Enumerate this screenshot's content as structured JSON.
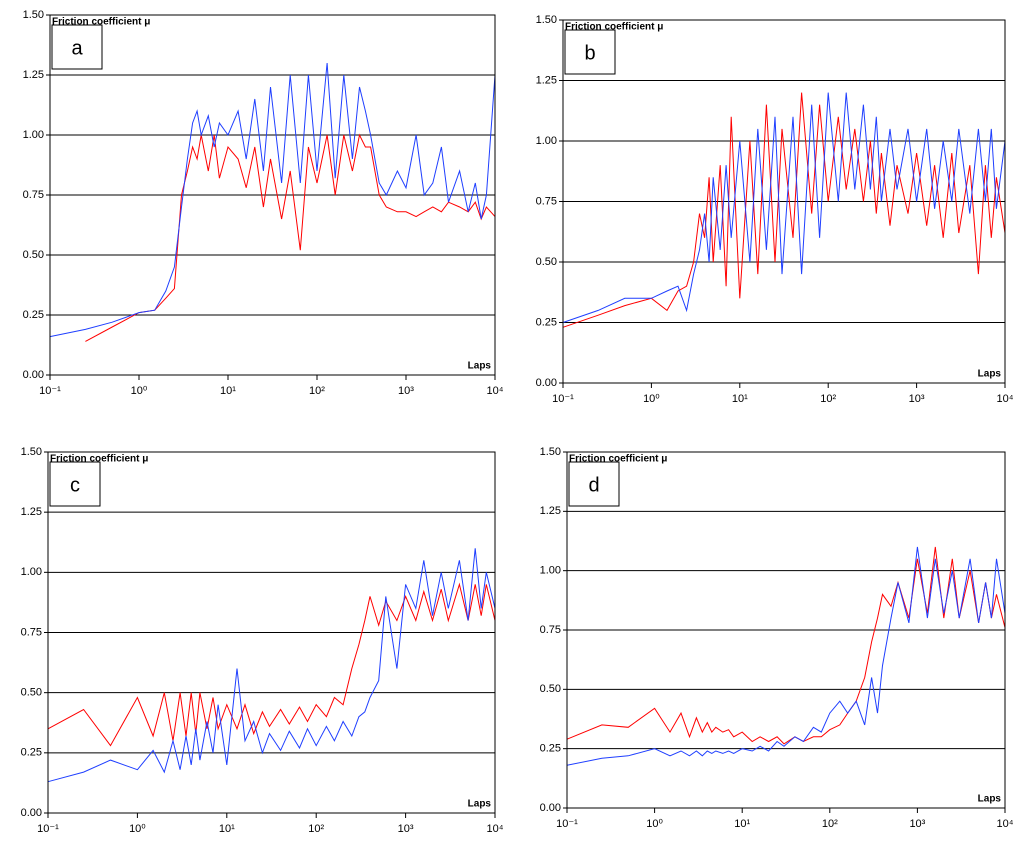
{
  "chart_data": [
    {
      "type": "line",
      "label": "a",
      "y_label": "Friction coefficient μ",
      "x_label": "Laps",
      "log_x": true,
      "grid": true,
      "x": [
        0.1,
        0.25,
        0.5,
        1,
        1.5,
        2,
        2.5,
        3,
        3.5,
        4,
        4.5,
        5,
        6,
        7,
        8,
        10,
        13,
        16,
        20,
        25,
        30,
        40,
        50,
        65,
        80,
        100,
        130,
        160,
        200,
        250,
        300,
        350,
        400,
        500,
        600,
        800,
        1000,
        1300,
        1600,
        2000,
        2500,
        3000,
        4000,
        5000,
        6000,
        7000,
        8000,
        10000
      ],
      "series": [
        {
          "color": "#ff0000",
          "values": [
            null,
            0.14,
            0.2,
            0.26,
            0.27,
            0.32,
            0.36,
            0.75,
            0.85,
            0.95,
            0.9,
            1.0,
            0.85,
            1.0,
            0.82,
            0.95,
            0.9,
            0.78,
            0.95,
            0.7,
            0.9,
            0.65,
            0.85,
            0.52,
            0.95,
            0.8,
            1.0,
            0.75,
            1.0,
            0.85,
            1.0,
            0.95,
            0.95,
            0.75,
            0.7,
            0.68,
            0.68,
            0.66,
            0.68,
            0.7,
            0.68,
            0.72,
            0.7,
            0.68,
            0.72,
            0.65,
            0.7,
            0.66
          ]
        },
        {
          "color": "#1f3fff",
          "values": [
            0.16,
            0.19,
            0.22,
            0.26,
            0.27,
            0.35,
            0.45,
            0.7,
            0.9,
            1.05,
            1.1,
            1.0,
            1.08,
            0.95,
            1.05,
            1.0,
            1.1,
            0.9,
            1.15,
            0.85,
            1.2,
            0.8,
            1.25,
            0.8,
            1.25,
            0.85,
            1.3,
            0.82,
            1.25,
            0.9,
            1.2,
            1.1,
            1.0,
            0.8,
            0.75,
            0.85,
            0.78,
            1.0,
            0.75,
            0.8,
            0.95,
            0.72,
            0.85,
            0.68,
            0.8,
            0.65,
            0.75,
            1.25
          ]
        }
      ],
      "xlim": [
        0.1,
        10000
      ],
      "xticks": [
        {
          "value": 0.1,
          "label": "10⁻¹"
        },
        {
          "value": 1,
          "label": "10⁰"
        },
        {
          "value": 10,
          "label": "10¹"
        },
        {
          "value": 100,
          "label": "10²"
        },
        {
          "value": 1000,
          "label": "10³"
        },
        {
          "value": 10000,
          "label": "10⁴"
        }
      ],
      "ylim": [
        0,
        1.5
      ],
      "yticks": [
        {
          "value": 0,
          "label": "0.00"
        },
        0.25,
        {
          "value": 0.5,
          "label": "0.50"
        },
        0.75,
        {
          "value": 1,
          "label": "1.00"
        },
        1.25,
        {
          "value": 1.5,
          "label": "1.50"
        }
      ]
    },
    {
      "type": "line",
      "label": "b",
      "y_label": "Friction coefficient μ",
      "x_label": "Laps",
      "log_x": true,
      "grid": true,
      "x": [
        0.1,
        0.25,
        0.5,
        1,
        1.5,
        2,
        2.5,
        3,
        3.5,
        4,
        4.5,
        5,
        6,
        7,
        8,
        10,
        13,
        16,
        20,
        25,
        30,
        40,
        50,
        65,
        80,
        100,
        130,
        160,
        200,
        250,
        300,
        350,
        400,
        500,
        600,
        800,
        1000,
        1300,
        1600,
        2000,
        2500,
        3000,
        4000,
        5000,
        6000,
        7000,
        8000,
        10000
      ],
      "series": [
        {
          "color": "#ff0000",
          "values": [
            0.23,
            0.28,
            0.32,
            0.35,
            0.3,
            0.38,
            0.4,
            0.5,
            0.7,
            0.6,
            0.85,
            0.5,
            0.9,
            0.4,
            1.1,
            0.35,
            1.0,
            0.45,
            1.15,
            0.5,
            1.05,
            0.6,
            1.2,
            0.7,
            1.15,
            0.75,
            1.1,
            0.8,
            1.05,
            0.75,
            1.0,
            0.7,
            0.95,
            0.65,
            0.9,
            0.7,
            0.95,
            0.65,
            0.9,
            0.6,
            0.95,
            0.62,
            0.9,
            0.45,
            0.9,
            0.6,
            0.85,
            0.62
          ]
        },
        {
          "color": "#1f3fff",
          "values": [
            0.25,
            0.3,
            0.35,
            0.35,
            0.38,
            0.4,
            0.3,
            0.45,
            0.55,
            0.7,
            0.5,
            0.85,
            0.55,
            0.9,
            0.6,
            1.0,
            0.5,
            1.05,
            0.55,
            1.1,
            0.45,
            1.1,
            0.45,
            1.15,
            0.6,
            1.2,
            0.75,
            1.2,
            0.8,
            1.15,
            0.8,
            1.1,
            0.75,
            1.05,
            0.8,
            1.05,
            0.75,
            1.05,
            0.72,
            1.0,
            0.75,
            1.05,
            0.7,
            1.05,
            0.75,
            1.05,
            0.72,
            1.0
          ]
        }
      ],
      "xlim": [
        0.1,
        10000
      ],
      "xticks": [
        {
          "value": 0.1,
          "label": "10⁻¹"
        },
        {
          "value": 1,
          "label": "10⁰"
        },
        {
          "value": 10,
          "label": "10¹"
        },
        {
          "value": 100,
          "label": "10²"
        },
        {
          "value": 1000,
          "label": "10³"
        },
        {
          "value": 10000,
          "label": "10⁴"
        }
      ],
      "ylim": [
        0,
        1.5
      ],
      "yticks": [
        {
          "value": 0,
          "label": "0.00"
        },
        0.25,
        {
          "value": 0.5,
          "label": "0.50"
        },
        0.75,
        {
          "value": 1,
          "label": "1.00"
        },
        1.25,
        {
          "value": 1.5,
          "label": "1.50"
        }
      ]
    },
    {
      "type": "line",
      "label": "c",
      "y_label": "Friction coefficient μ",
      "x_label": "Laps",
      "log_x": true,
      "grid": true,
      "x": [
        0.1,
        0.25,
        0.5,
        1,
        1.5,
        2,
        2.5,
        3,
        3.5,
        4,
        4.5,
        5,
        6,
        7,
        8,
        10,
        13,
        16,
        20,
        25,
        30,
        40,
        50,
        65,
        80,
        100,
        130,
        160,
        200,
        250,
        300,
        350,
        400,
        500,
        600,
        800,
        1000,
        1300,
        1600,
        2000,
        2500,
        3000,
        4000,
        5000,
        6000,
        7000,
        8000,
        10000
      ],
      "series": [
        {
          "color": "#ff0000",
          "values": [
            0.35,
            0.43,
            0.28,
            0.48,
            0.32,
            0.5,
            0.3,
            0.5,
            0.32,
            0.5,
            0.33,
            0.5,
            0.35,
            0.48,
            0.35,
            0.45,
            0.35,
            0.45,
            0.33,
            0.42,
            0.36,
            0.43,
            0.37,
            0.44,
            0.38,
            0.45,
            0.4,
            0.48,
            0.45,
            0.6,
            0.7,
            0.8,
            0.9,
            0.78,
            0.88,
            0.8,
            0.9,
            0.8,
            0.92,
            0.8,
            0.93,
            0.8,
            0.95,
            0.8,
            0.95,
            0.82,
            0.95,
            0.8
          ]
        },
        {
          "color": "#1f3fff",
          "values": [
            0.13,
            0.17,
            0.22,
            0.18,
            0.26,
            0.17,
            0.3,
            0.18,
            0.32,
            0.2,
            0.35,
            0.22,
            0.38,
            0.25,
            0.45,
            0.2,
            0.6,
            0.3,
            0.38,
            0.25,
            0.33,
            0.26,
            0.34,
            0.27,
            0.35,
            0.28,
            0.36,
            0.3,
            0.38,
            0.32,
            0.4,
            0.42,
            0.48,
            0.55,
            0.9,
            0.6,
            0.95,
            0.85,
            1.05,
            0.82,
            1.0,
            0.85,
            1.05,
            0.8,
            1.1,
            0.85,
            1.0,
            0.85
          ]
        }
      ],
      "xlim": [
        0.1,
        10000
      ],
      "xticks": [
        {
          "value": 0.1,
          "label": "10⁻¹"
        },
        {
          "value": 1,
          "label": "10⁰"
        },
        {
          "value": 10,
          "label": "10¹"
        },
        {
          "value": 100,
          "label": "10²"
        },
        {
          "value": 1000,
          "label": "10³"
        },
        {
          "value": 10000,
          "label": "10⁴"
        }
      ],
      "ylim": [
        0,
        1.5
      ],
      "yticks": [
        {
          "value": 0,
          "label": "0.00"
        },
        0.25,
        {
          "value": 0.5,
          "label": "0.50"
        },
        0.75,
        {
          "value": 1,
          "label": "1.00"
        },
        1.25,
        {
          "value": 1.5,
          "label": "1.50"
        }
      ]
    },
    {
      "type": "line",
      "label": "d",
      "y_label": "Friction coefficient μ",
      "x_label": "Laps",
      "log_x": true,
      "grid": true,
      "x": [
        0.1,
        0.25,
        0.5,
        1,
        1.5,
        2,
        2.5,
        3,
        3.5,
        4,
        4.5,
        5,
        6,
        7,
        8,
        10,
        13,
        16,
        20,
        25,
        30,
        40,
        50,
        65,
        80,
        100,
        130,
        160,
        200,
        250,
        300,
        350,
        400,
        500,
        600,
        800,
        1000,
        1300,
        1600,
        2000,
        2500,
        3000,
        4000,
        5000,
        6000,
        7000,
        8000,
        10000
      ],
      "series": [
        {
          "color": "#ff0000",
          "values": [
            0.29,
            0.35,
            0.34,
            0.42,
            0.32,
            0.4,
            0.3,
            0.38,
            0.32,
            0.36,
            0.32,
            0.34,
            0.32,
            0.33,
            0.3,
            0.32,
            0.28,
            0.3,
            0.28,
            0.3,
            0.27,
            0.3,
            0.28,
            0.3,
            0.3,
            0.33,
            0.35,
            0.4,
            0.45,
            0.55,
            0.7,
            0.8,
            0.9,
            0.85,
            0.95,
            0.8,
            1.05,
            0.82,
            1.1,
            0.8,
            1.05,
            0.8,
            1.0,
            0.78,
            0.95,
            0.8,
            0.9,
            0.76
          ]
        },
        {
          "color": "#1f3fff",
          "values": [
            0.18,
            0.21,
            0.22,
            0.25,
            0.22,
            0.24,
            0.22,
            0.24,
            0.22,
            0.24,
            0.23,
            0.24,
            0.23,
            0.24,
            0.23,
            0.25,
            0.24,
            0.26,
            0.24,
            0.28,
            0.26,
            0.3,
            0.28,
            0.34,
            0.32,
            0.4,
            0.45,
            0.4,
            0.45,
            0.35,
            0.55,
            0.4,
            0.6,
            0.8,
            0.95,
            0.78,
            1.1,
            0.8,
            1.05,
            0.82,
            1.0,
            0.8,
            1.05,
            0.78,
            0.95,
            0.8,
            1.05,
            0.82
          ]
        }
      ],
      "xlim": [
        0.1,
        10000
      ],
      "xticks": [
        {
          "value": 0.1,
          "label": "10⁻¹"
        },
        {
          "value": 1,
          "label": "10⁰"
        },
        {
          "value": 10,
          "label": "10¹"
        },
        {
          "value": 100,
          "label": "10²"
        },
        {
          "value": 1000,
          "label": "10³"
        },
        {
          "value": 10000,
          "label": "10⁴"
        }
      ],
      "ylim": [
        0,
        1.5
      ],
      "yticks": [
        {
          "value": 0,
          "label": "0.00"
        },
        0.25,
        {
          "value": 0.5,
          "label": "0.50"
        },
        0.75,
        {
          "value": 1,
          "label": "1.00"
        },
        1.25,
        {
          "value": 1.5,
          "label": "1.50"
        }
      ]
    }
  ]
}
